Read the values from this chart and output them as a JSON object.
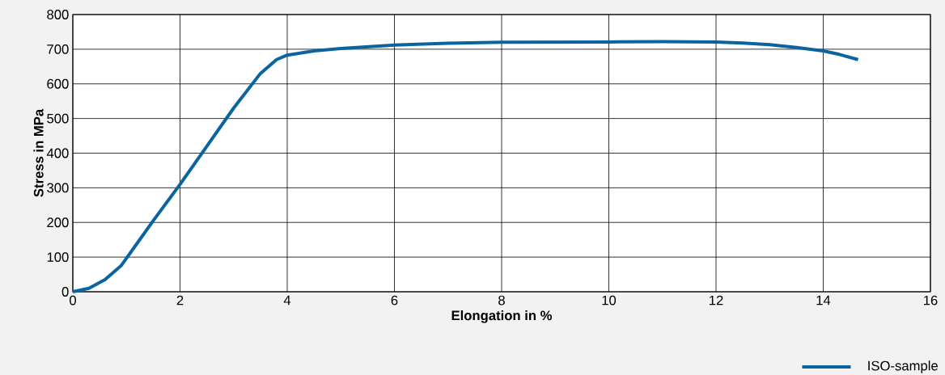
{
  "chart_data": {
    "type": "line",
    "xlabel": "Elongation in %",
    "ylabel": "Stress in MPa",
    "xlim": [
      0,
      16
    ],
    "ylim": [
      0,
      800
    ],
    "xticks": [
      0,
      2,
      4,
      6,
      8,
      10,
      12,
      14,
      16
    ],
    "yticks": [
      0,
      100,
      200,
      300,
      400,
      500,
      600,
      700,
      800
    ],
    "grid": true,
    "legend": "bottom right",
    "line_style": "solid",
    "series": [
      {
        "name": "ISO-sample",
        "color": "#0a64a0",
        "x": [
          0,
          0.3,
          0.6,
          0.9,
          1.2,
          1.5,
          2,
          2.5,
          3,
          3.5,
          3.8,
          4,
          4.5,
          5,
          6,
          7,
          8,
          10,
          11,
          12,
          12.5,
          13,
          13.5,
          14,
          14.3,
          14.65
        ],
        "values": [
          0,
          10,
          35,
          75,
          140,
          205,
          310,
          420,
          530,
          630,
          670,
          683,
          695,
          702,
          712,
          717,
          720,
          721,
          722,
          721,
          718,
          713,
          705,
          695,
          685,
          670
        ]
      }
    ]
  }
}
